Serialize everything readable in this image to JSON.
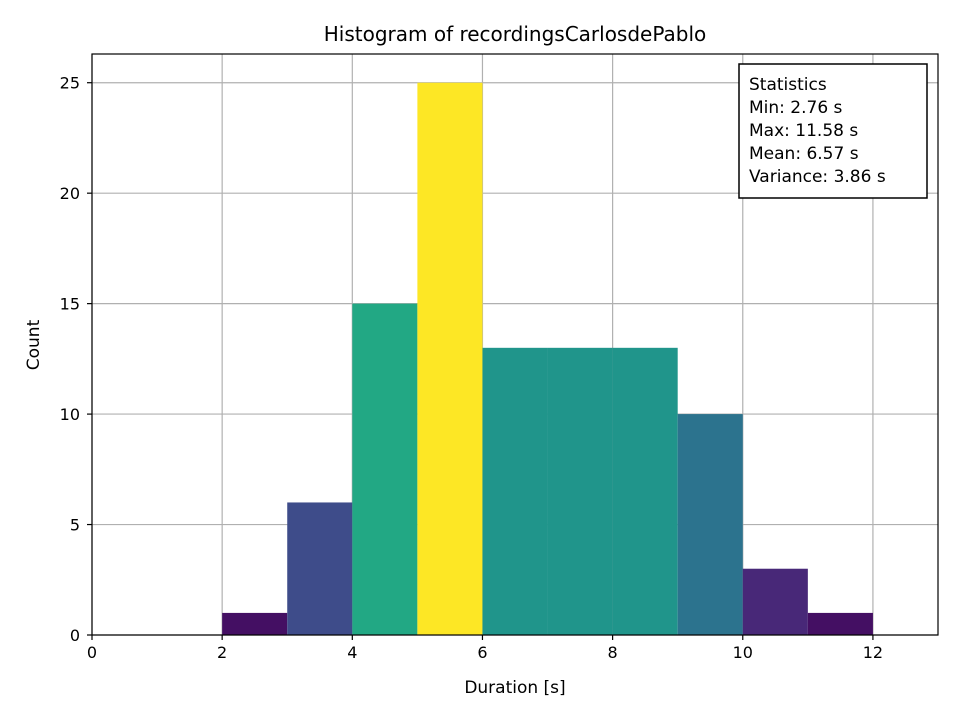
{
  "chart_data": {
    "type": "bar",
    "title": "Histogram of recordingsCarlosdePablo",
    "xlabel": "Duration [s]",
    "ylabel": "Count",
    "xlim": [
      0,
      13
    ],
    "ylim": [
      0,
      26.3
    ],
    "grid": true,
    "x_ticks": [
      0,
      2,
      4,
      6,
      8,
      10,
      12
    ],
    "y_ticks": [
      0,
      5,
      10,
      15,
      20,
      25
    ],
    "bins": [
      {
        "start": 2,
        "end": 3,
        "count": 1,
        "color": "#440f63"
      },
      {
        "start": 3,
        "end": 4,
        "count": 6,
        "color": "#3e4c8a"
      },
      {
        "start": 4,
        "end": 5,
        "count": 15,
        "color": "#22a884"
      },
      {
        "start": 5,
        "end": 6,
        "count": 25,
        "color": "#fde725"
      },
      {
        "start": 6,
        "end": 7,
        "count": 13,
        "color": "#20958b"
      },
      {
        "start": 7,
        "end": 8,
        "count": 13,
        "color": "#20958b"
      },
      {
        "start": 8,
        "end": 9,
        "count": 13,
        "color": "#20958b"
      },
      {
        "start": 9,
        "end": 10,
        "count": 10,
        "color": "#2c738e"
      },
      {
        "start": 10,
        "end": 11,
        "count": 3,
        "color": "#482878"
      },
      {
        "start": 11,
        "end": 12,
        "count": 1,
        "color": "#440f63"
      },
      {
        "start": 12,
        "end": 13,
        "count": 0,
        "color": "#440154"
      }
    ],
    "stats_box": {
      "position": "top-right",
      "lines": [
        "Statistics",
        "Min: 2.76 s",
        "Max: 11.58 s",
        "Mean: 6.57 s",
        "Variance: 3.86 s"
      ]
    }
  }
}
